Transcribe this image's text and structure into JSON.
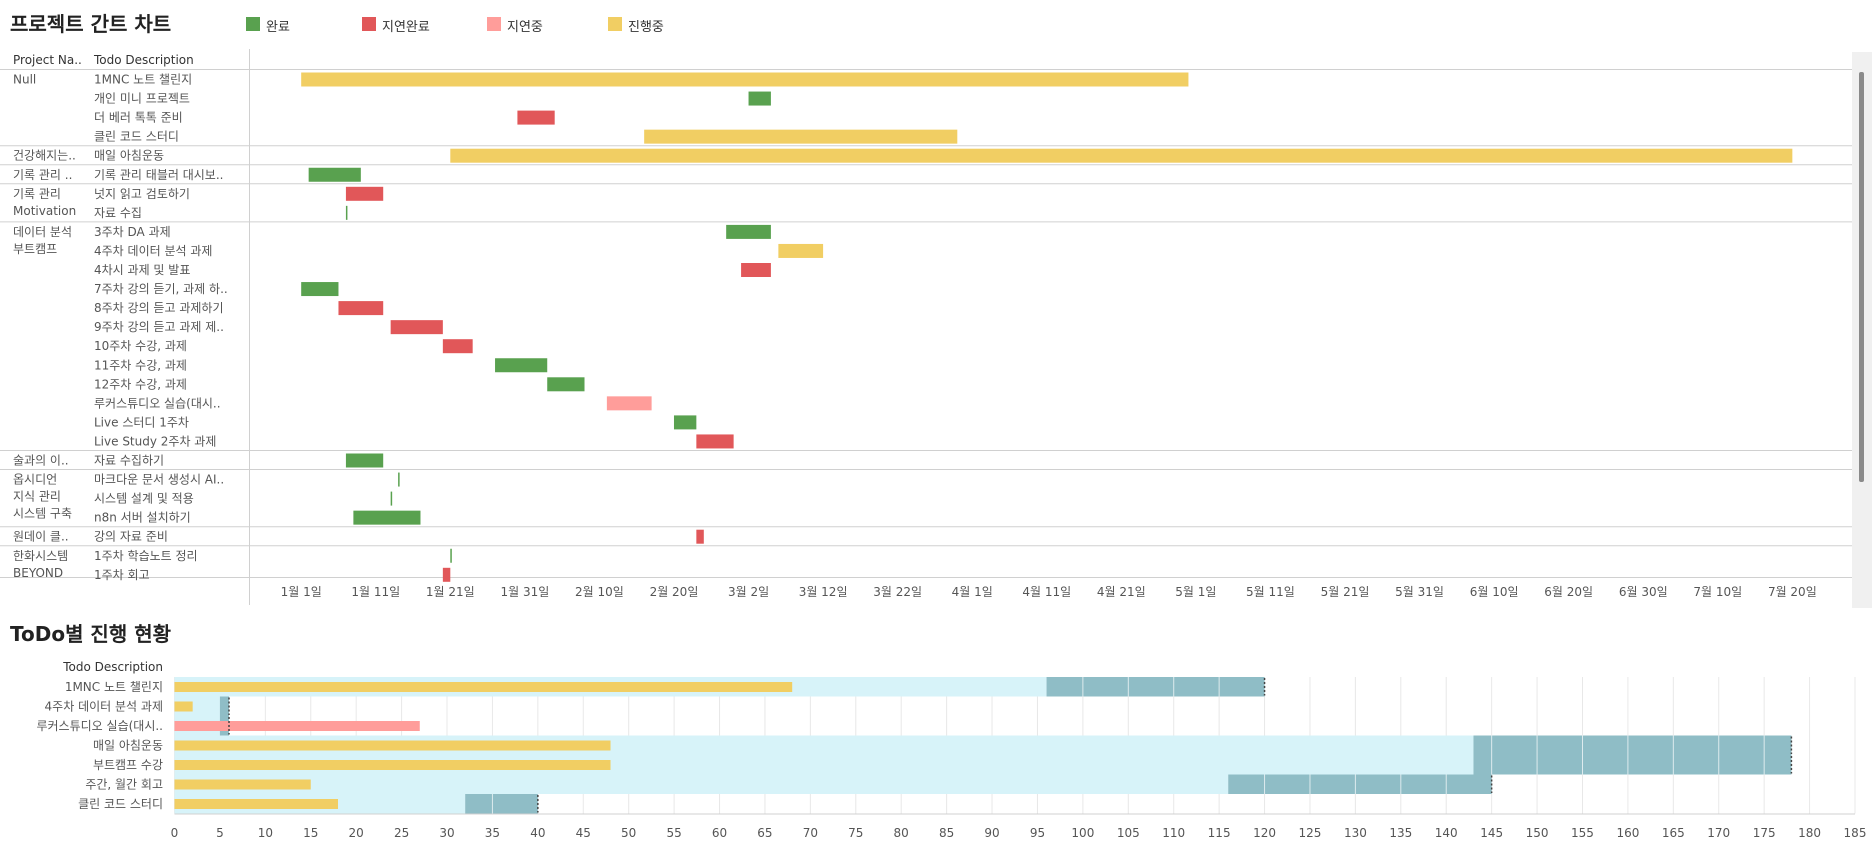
{
  "gantt": {
    "title": "프로젝트 간트 차트",
    "legend": [
      {
        "key": "done",
        "label": "완료",
        "color": "#59a14f"
      },
      {
        "key": "late_done",
        "label": "지연완료",
        "color": "#e15759"
      },
      {
        "key": "late",
        "label": "지연중",
        "color": "#ff9d9a"
      },
      {
        "key": "progress",
        "label": "진행중",
        "color": "#f1ce63"
      }
    ],
    "col_project": "Project Na..",
    "col_todo": "Todo Description"
  },
  "progress": {
    "title": "ToDo별 진행 현황",
    "col_todo": "Todo Description"
  },
  "chart_data": [
    {
      "type": "bar",
      "subtype": "gantt",
      "title": "프로젝트 간트 차트",
      "x_axis": {
        "type": "date",
        "range": [
          "2025-12-25",
          "2026-07-28"
        ],
        "tick_labels": [
          "1월 1일",
          "1월 11일",
          "1월 21일",
          "1월 31일",
          "2월 10일",
          "2월 20일",
          "3월 2일",
          "3월 12일",
          "3월 22일",
          "4월 1일",
          "4월 11일",
          "4월 21일",
          "5월 1일",
          "5월 11일",
          "5월 21일",
          "5월 31일",
          "6월 10일",
          "6월 20일",
          "6월 30일",
          "7월 10일",
          "7월 20일"
        ],
        "tick_dates": [
          "2026-01-01",
          "2026-01-11",
          "2026-01-21",
          "2026-01-31",
          "2026-02-10",
          "2026-02-20",
          "2026-03-02",
          "2026-03-12",
          "2026-03-22",
          "2026-04-01",
          "2026-04-11",
          "2026-04-21",
          "2026-05-01",
          "2026-05-11",
          "2026-05-21",
          "2026-05-31",
          "2026-06-10",
          "2026-06-20",
          "2026-06-30",
          "2026-07-10",
          "2026-07-20"
        ]
      },
      "groups": [
        {
          "project": [
            "Null"
          ],
          "tasks": [
            {
              "name": "1MNC 노트 챌린지",
              "start": "2026-01-01",
              "end": "2026-04-30",
              "status": "progress"
            },
            {
              "name": "개인 미니 프로젝트",
              "start": "2026-03-02",
              "end": "2026-03-05",
              "status": "done"
            },
            {
              "name": "더 베러 톡톡 준비",
              "start": "2026-01-30",
              "end": "2026-02-04",
              "status": "late_done"
            },
            {
              "name": "클린 코드 스터디",
              "start": "2026-02-16",
              "end": "2026-03-30",
              "status": "progress"
            }
          ]
        },
        {
          "project": [
            "건강해지는.."
          ],
          "tasks": [
            {
              "name": "매일 아침운동",
              "start": "2026-01-21",
              "end": "2026-07-20",
              "status": "progress"
            }
          ]
        },
        {
          "project": [
            "기록 관리 .."
          ],
          "tasks": [
            {
              "name": "기록 관리 태블러 대시보..",
              "start": "2026-01-02",
              "end": "2026-01-09",
              "status": "done"
            }
          ]
        },
        {
          "project": [
            "기록 관리",
            "Motivation"
          ],
          "tasks": [
            {
              "name": "넛지 읽고 검토하기",
              "start": "2026-01-07",
              "end": "2026-01-12",
              "status": "late_done"
            },
            {
              "name": "자료 수집",
              "start": "2026-01-07",
              "end": "2026-01-07",
              "status": "done"
            }
          ]
        },
        {
          "project": [
            "데이터 분석",
            "부트캠프"
          ],
          "tasks": [
            {
              "name": "3주차 DA 과제",
              "start": "2026-02-27",
              "end": "2026-03-05",
              "status": "done"
            },
            {
              "name": "4주차 데이터 분석 과제",
              "start": "2026-03-06",
              "end": "2026-03-12",
              "status": "progress"
            },
            {
              "name": "4차시 과제 및 발표",
              "start": "2026-03-01",
              "end": "2026-03-05",
              "status": "late_done"
            },
            {
              "name": "7주차 강의 듣기, 과제 하..",
              "start": "2026-01-01",
              "end": "2026-01-06",
              "status": "done"
            },
            {
              "name": "8주차 강의 듣고 과제하기",
              "start": "2026-01-06",
              "end": "2026-01-12",
              "status": "late_done"
            },
            {
              "name": "9주차 강의 듣고 과제 제..",
              "start": "2026-01-13",
              "end": "2026-01-20",
              "status": "late_done"
            },
            {
              "name": "10주차 수강, 과제",
              "start": "2026-01-20",
              "end": "2026-01-24",
              "status": "late_done"
            },
            {
              "name": "11주차 수강, 과제",
              "start": "2026-01-27",
              "end": "2026-02-03",
              "status": "done"
            },
            {
              "name": "12주차 수강, 과제",
              "start": "2026-02-03",
              "end": "2026-02-08",
              "status": "done"
            },
            {
              "name": "루커스튜디오 실습(대시..",
              "start": "2026-02-11",
              "end": "2026-02-17",
              "status": "late"
            },
            {
              "name": "Live 스터디 1주차",
              "start": "2026-02-20",
              "end": "2026-02-23",
              "status": "done"
            },
            {
              "name": "Live Study 2주차 과제",
              "start": "2026-02-23",
              "end": "2026-02-28",
              "status": "late_done"
            }
          ]
        },
        {
          "project": [
            "술과의 이.."
          ],
          "tasks": [
            {
              "name": "자료 수집하기",
              "start": "2026-01-07",
              "end": "2026-01-12",
              "status": "done"
            }
          ]
        },
        {
          "project": [
            "옵시디언",
            "지식 관리",
            "시스템 구축"
          ],
          "tasks": [
            {
              "name": "마크다운 문서 생성시 AI..",
              "start": "2026-01-14",
              "end": "2026-01-14",
              "status": "done"
            },
            {
              "name": "시스템 설계 및 적용",
              "start": "2026-01-13",
              "end": "2026-01-13",
              "status": "done"
            },
            {
              "name": "n8n 서버 설치하기",
              "start": "2026-01-08",
              "end": "2026-01-17",
              "status": "done"
            }
          ]
        },
        {
          "project": [
            "원데이 클.."
          ],
          "tasks": [
            {
              "name": "강의 자료 준비",
              "start": "2026-02-23",
              "end": "2026-02-24",
              "status": "late_done"
            }
          ]
        },
        {
          "project": [
            "한화시스템",
            "BEYOND"
          ],
          "tasks": [
            {
              "name": "1주차 학습노트 정리",
              "start": "2026-01-21",
              "end": "2026-01-21",
              "status": "done"
            },
            {
              "name": "1주차 회고",
              "start": "2026-01-20",
              "end": "2026-01-21",
              "status": "late_done"
            }
          ]
        }
      ]
    },
    {
      "type": "bar",
      "subtype": "bullet",
      "title": "ToDo별 진행 현황",
      "xlim": [
        0,
        185
      ],
      "x_ticks": [
        0,
        5,
        10,
        15,
        20,
        25,
        30,
        35,
        40,
        45,
        50,
        55,
        60,
        65,
        70,
        75,
        80,
        85,
        90,
        95,
        100,
        105,
        110,
        115,
        120,
        125,
        130,
        135,
        140,
        145,
        150,
        155,
        160,
        165,
        170,
        175,
        180,
        185
      ],
      "categories": [
        "1MNC 노트 챌린지",
        "4주차 데이터 분석 과제",
        "루커스튜디오 실습(대시..",
        "매일 아침운동",
        "부트캠프 수강",
        "주간, 월간 회고",
        "클린 코드 스터디"
      ],
      "series": [
        {
          "values": [
            68,
            2,
            27,
            48,
            48,
            15,
            18
          ],
          "colors": [
            "#f1ce63",
            "#f1ce63",
            "#ff9d9a",
            "#f1ce63",
            "#f1ce63",
            "#f1ce63",
            "#f1ce63"
          ]
        }
      ],
      "band_light": [
        96,
        5,
        5,
        143,
        143,
        116,
        32
      ],
      "band_dark_end": [
        120,
        6,
        6,
        178,
        178,
        145,
        40
      ],
      "target": [
        120,
        6,
        6,
        178,
        178,
        145,
        40
      ],
      "band_light_color": "#d7f3f9",
      "band_dark_color": "#8fbdc6"
    }
  ]
}
